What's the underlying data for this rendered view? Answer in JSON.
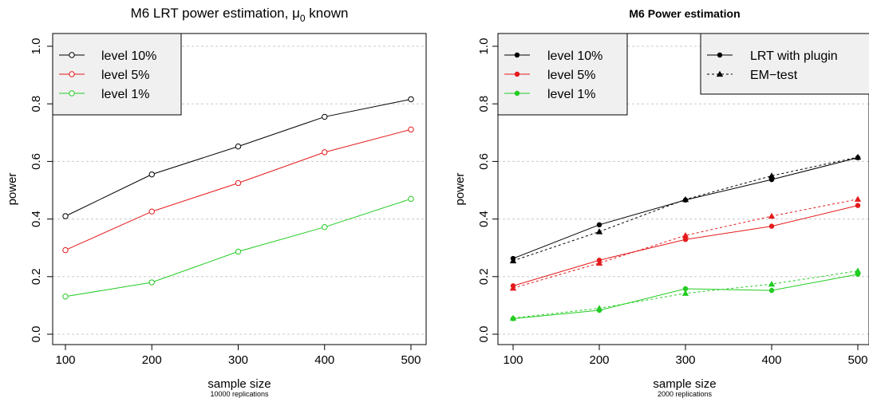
{
  "chart_data": [
    {
      "type": "line",
      "title": "M6 LRT power estimation, μ",
      "title_subscript": "0",
      "title_suffix": " known",
      "xlabel": "sample size",
      "x_sublabel": "10000 replications",
      "ylabel": "power",
      "xlim": [
        100,
        500
      ],
      "ylim": [
        0,
        1
      ],
      "x_ticks": [
        "100",
        "200",
        "300",
        "400",
        "500"
      ],
      "y_ticks": [
        "0.0",
        "0.2",
        "0.4",
        "0.6",
        "0.8",
        "1.0"
      ],
      "grid": "horizontal dotted",
      "legend_position": "top-left",
      "x": [
        100,
        200,
        300,
        400,
        500
      ],
      "series": [
        {
          "name": "level 10%",
          "color": "#000000",
          "marker": "open-circle",
          "values": [
            0.41,
            0.555,
            0.652,
            0.755,
            0.816
          ]
        },
        {
          "name": "level 5%",
          "color": "#e41a1c",
          "marker": "open-circle",
          "values": [
            0.292,
            0.426,
            0.525,
            0.632,
            0.711
          ]
        },
        {
          "name": "level 1%",
          "color": "#22cc22",
          "marker": "open-circle",
          "values": [
            0.131,
            0.18,
            0.287,
            0.372,
            0.47
          ]
        }
      ]
    },
    {
      "type": "line",
      "title": "M6 Power estimation",
      "xlabel": "sample size",
      "x_sublabel": "2000 replications",
      "ylabel": "power",
      "xlim": [
        100,
        500
      ],
      "ylim": [
        0,
        1
      ],
      "x_ticks": [
        "100",
        "200",
        "300",
        "400",
        "500"
      ],
      "y_ticks": [
        "0.0",
        "0.2",
        "0.4",
        "0.6",
        "0.8",
        "1.0"
      ],
      "grid": "horizontal dotted",
      "legend_position": "top-left",
      "legend2_position": "top-right",
      "level_legend": [
        {
          "name": "level 10%",
          "color": "#000000"
        },
        {
          "name": "level 5%",
          "color": "#e41a1c"
        },
        {
          "name": "level 1%",
          "color": "#22cc22"
        }
      ],
      "method_legend": [
        {
          "name": "LRT with plugin",
          "marker": "filled-circle",
          "line": "solid"
        },
        {
          "name": "EM−test",
          "marker": "filled-triangle",
          "line": "dashed"
        }
      ],
      "x": [
        100,
        200,
        300,
        400,
        500
      ],
      "series": [
        {
          "name": "level 10% LRT with plugin",
          "color": "#000000",
          "marker": "filled-circle",
          "dash": false,
          "values": [
            0.263,
            0.38,
            0.466,
            0.537,
            0.613
          ]
        },
        {
          "name": "level 10% EM−test",
          "color": "#000000",
          "marker": "filled-triangle",
          "dash": true,
          "values": [
            0.255,
            0.356,
            0.468,
            0.55,
            0.615
          ]
        },
        {
          "name": "level 5% LRT with plugin",
          "color": "#e41a1c",
          "marker": "filled-circle",
          "dash": false,
          "values": [
            0.168,
            0.257,
            0.329,
            0.375,
            0.447
          ]
        },
        {
          "name": "level 5% EM−test",
          "color": "#e41a1c",
          "marker": "filled-triangle",
          "dash": true,
          "values": [
            0.16,
            0.247,
            0.343,
            0.41,
            0.469
          ]
        },
        {
          "name": "level 1% LRT with plugin",
          "color": "#22cc22",
          "marker": "filled-circle",
          "dash": false,
          "values": [
            0.054,
            0.083,
            0.158,
            0.152,
            0.208
          ]
        },
        {
          "name": "level 1% EM−test",
          "color": "#22cc22",
          "marker": "filled-triangle",
          "dash": true,
          "values": [
            0.056,
            0.09,
            0.142,
            0.174,
            0.22
          ]
        }
      ]
    }
  ]
}
